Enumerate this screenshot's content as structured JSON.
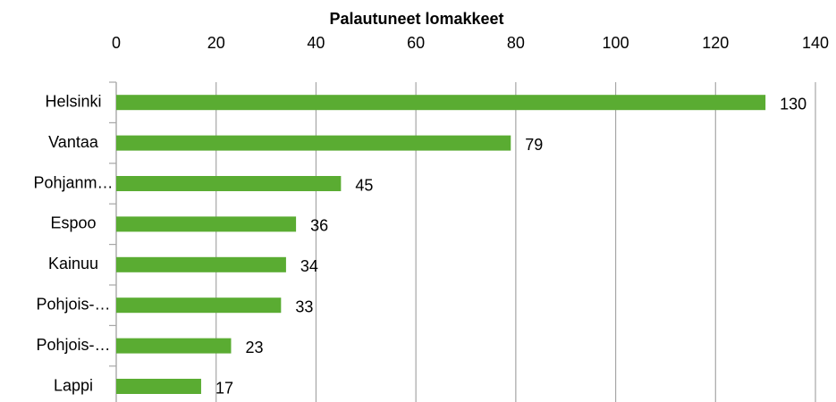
{
  "chart_data": {
    "type": "bar",
    "orientation": "horizontal",
    "title": "Palautuneet lomakkeet",
    "categories": [
      "Helsinki",
      "Vantaa",
      "Pohjanm…",
      "Espoo",
      "Kainuu",
      "Pohjois-…",
      "Pohjois-…",
      "Lappi"
    ],
    "values": [
      130,
      79,
      45,
      36,
      34,
      33,
      23,
      17
    ],
    "color": "#5aac32",
    "xlim": [
      0,
      140
    ],
    "xticks": [
      0,
      20,
      40,
      60,
      80,
      100,
      120,
      140
    ],
    "grid": true
  }
}
